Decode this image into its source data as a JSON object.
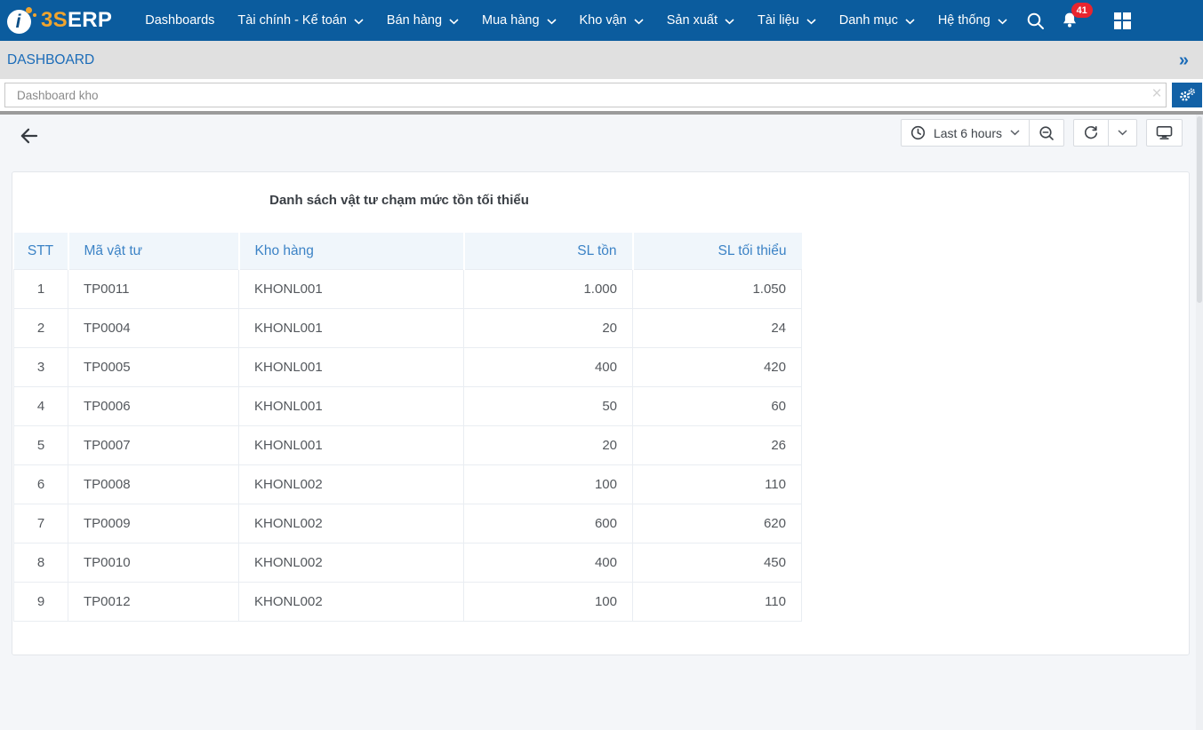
{
  "nav": {
    "logo": {
      "mark_letter": "i",
      "brand_3s": "3S",
      "brand_erp": "ERP"
    },
    "items": [
      {
        "label": "Dashboards",
        "caret": false
      },
      {
        "label": "Tài chính - Kế toán",
        "caret": true
      },
      {
        "label": "Bán hàng",
        "caret": true
      },
      {
        "label": "Mua hàng",
        "caret": true
      },
      {
        "label": "Kho vận",
        "caret": true
      },
      {
        "label": "Sản xuất",
        "caret": true
      },
      {
        "label": "Tài liệu",
        "caret": true
      },
      {
        "label": "Danh mục",
        "caret": true
      },
      {
        "label": "Hệ thống",
        "caret": true
      }
    ],
    "notification_count": "41",
    "colors": {
      "navbar": "#0b5c9e",
      "brand_orange": "#f0a42e",
      "badge_red": "#e8252f"
    }
  },
  "breadcrumb": {
    "title": "DASHBOARD",
    "expand_glyph": "»"
  },
  "filter": {
    "value": "Dashboard kho"
  },
  "toolbar": {
    "time_range": "Last 6 hours"
  },
  "panel": {
    "title": "Danh sách vật tư chạm mức tồn tối thiểu",
    "table": {
      "columns": [
        {
          "label": "STT",
          "align": "center"
        },
        {
          "label": "Mã vật tư",
          "align": "left"
        },
        {
          "label": "Kho hàng",
          "align": "left"
        },
        {
          "label": "SL tồn",
          "align": "right"
        },
        {
          "label": "SL tối thiểu",
          "align": "right"
        }
      ],
      "rows": [
        [
          "1",
          "TP0011",
          "KHONL001",
          "1.000",
          "1.050"
        ],
        [
          "2",
          "TP0004",
          "KHONL001",
          "20",
          "24"
        ],
        [
          "3",
          "TP0005",
          "KHONL001",
          "400",
          "420"
        ],
        [
          "4",
          "TP0006",
          "KHONL001",
          "50",
          "60"
        ],
        [
          "5",
          "TP0007",
          "KHONL001",
          "20",
          "26"
        ],
        [
          "6",
          "TP0008",
          "KHONL002",
          "100",
          "110"
        ],
        [
          "7",
          "TP0009",
          "KHONL002",
          "600",
          "620"
        ],
        [
          "8",
          "TP0010",
          "KHONL002",
          "400",
          "450"
        ],
        [
          "9",
          "TP0012",
          "KHONL002",
          "100",
          "110"
        ]
      ]
    }
  }
}
